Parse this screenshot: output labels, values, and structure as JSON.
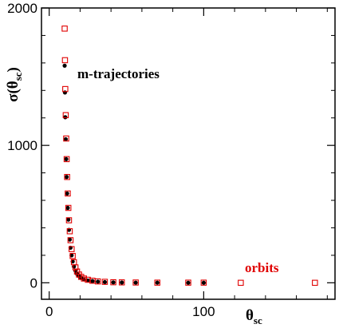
{
  "chart_data": {
    "type": "scatter",
    "xlim": [
      -5,
      185
    ],
    "ylim": [
      -120,
      2000
    ],
    "x_ticks": [
      "0",
      "100"
    ],
    "x_tick_values": [
      0,
      100
    ],
    "x_minor_step": 20,
    "y_ticks": [
      "0",
      "1000",
      "2000"
    ],
    "y_tick_values": [
      0,
      1000,
      2000
    ],
    "y_minor_step": 200,
    "xlabel": {
      "base": "θ",
      "sub": "sc"
    },
    "ylabel": {
      "base": "σ(θ",
      "sub": "sc",
      "close": ")"
    },
    "annotations": [
      {
        "text": "m-trajectories",
        "color": "#000000"
      },
      {
        "text": "orbits",
        "color": "#e00000"
      }
    ],
    "series": [
      {
        "marker": "filled-circle",
        "color": "#000000",
        "points": [
          [
            10,
            1580
          ],
          [
            10.2,
            1385
          ],
          [
            10.4,
            1205
          ],
          [
            10.7,
            1045
          ],
          [
            11,
            900
          ],
          [
            11.3,
            770
          ],
          [
            11.6,
            650
          ],
          [
            12,
            545
          ],
          [
            12.4,
            460
          ],
          [
            12.8,
            385
          ],
          [
            13.3,
            315
          ],
          [
            13.8,
            255
          ],
          [
            14.5,
            200
          ],
          [
            15.2,
            155
          ],
          [
            16,
            118
          ],
          [
            17,
            88
          ],
          [
            18,
            65
          ],
          [
            19.3,
            48
          ],
          [
            20.7,
            35
          ],
          [
            22.5,
            25
          ],
          [
            25,
            17
          ],
          [
            28,
            12
          ],
          [
            31.5,
            8
          ],
          [
            36,
            5
          ],
          [
            41.5,
            3
          ],
          [
            47,
            2
          ],
          [
            56,
            1
          ],
          [
            70,
            1
          ],
          [
            90,
            0
          ],
          [
            100,
            0
          ]
        ]
      },
      {
        "marker": "open-square",
        "color": "#e00000",
        "points": [
          [
            10,
            1850
          ],
          [
            10.2,
            1620
          ],
          [
            10.4,
            1410
          ],
          [
            10.7,
            1220
          ],
          [
            11,
            1050
          ],
          [
            11.3,
            900
          ],
          [
            11.6,
            770
          ],
          [
            12,
            650
          ],
          [
            12.4,
            545
          ],
          [
            12.8,
            455
          ],
          [
            13.3,
            375
          ],
          [
            13.8,
            310
          ],
          [
            14.5,
            245
          ],
          [
            15.2,
            195
          ],
          [
            16,
            150
          ],
          [
            17,
            112
          ],
          [
            18,
            82
          ],
          [
            19.3,
            60
          ],
          [
            20.7,
            43
          ],
          [
            22.5,
            31
          ],
          [
            25,
            22
          ],
          [
            28,
            15
          ],
          [
            31.5,
            10
          ],
          [
            36,
            7
          ],
          [
            41.5,
            4
          ],
          [
            47,
            3
          ],
          [
            56,
            2
          ],
          [
            70,
            1
          ],
          [
            90,
            1
          ],
          [
            100,
            1
          ],
          [
            124,
            0
          ],
          [
            172,
            0
          ]
        ]
      }
    ]
  }
}
